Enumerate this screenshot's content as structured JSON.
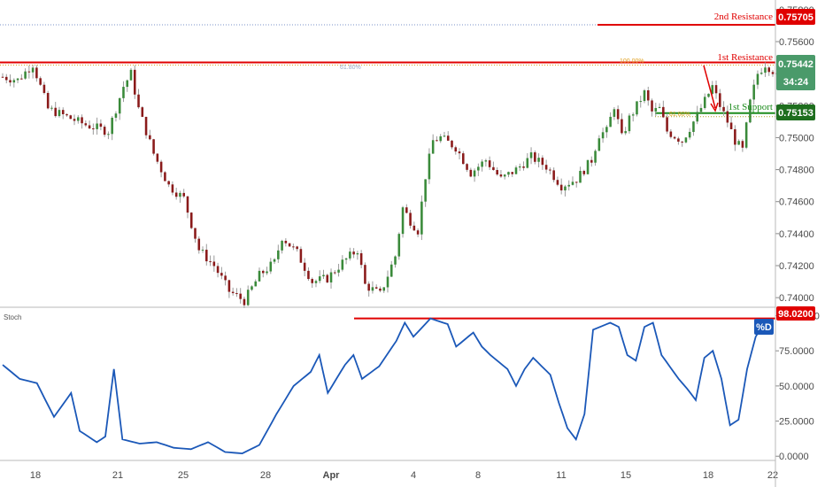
{
  "chart_data": [
    {
      "type": "candlestick",
      "panel": "price",
      "ylim": [
        0.7394,
        0.7586
      ],
      "y_ticks": [
        "0.75800",
        "0.75600",
        "0.75400",
        "0.75200",
        "0.75000",
        "0.74800",
        "0.74600",
        "0.74400",
        "0.74200",
        "0.74000"
      ],
      "x_ticks": [
        "18",
        "21",
        "25",
        "28",
        "Apr",
        "4",
        "8",
        "11",
        "15",
        "18",
        "22"
      ],
      "levels": [
        {
          "name": "2nd Resistance",
          "value": 0.75705,
          "value_text": "0.75705",
          "color": "#e00000"
        },
        {
          "name": "1st Resistance",
          "value": 0.7547,
          "color": "#e00000"
        },
        {
          "name": "1st Support",
          "value": 0.75153,
          "value_text": "0.75153",
          "color": "#1e8c1e"
        }
      ],
      "price_tag": {
        "value": 0.75442,
        "value_text": "0.75442",
        "countdown": "34:24",
        "color": "#4a9a6a"
      },
      "fib_labels": [
        "61.80%",
        "100.00%",
        "61.80%"
      ],
      "series_keypoints": [
        [
          0,
          0.7538
        ],
        [
          4,
          0.7536
        ],
        [
          8,
          0.7546
        ],
        [
          12,
          0.7518
        ],
        [
          16,
          0.7514
        ],
        [
          22,
          0.7508
        ],
        [
          28,
          0.7504
        ],
        [
          32,
          0.7532
        ],
        [
          34,
          0.754
        ],
        [
          36,
          0.7518
        ],
        [
          40,
          0.749
        ],
        [
          44,
          0.747
        ],
        [
          48,
          0.7462
        ],
        [
          52,
          0.743
        ],
        [
          56,
          0.742
        ],
        [
          60,
          0.7404
        ],
        [
          64,
          0.7398
        ],
        [
          68,
          0.7414
        ],
        [
          72,
          0.7422
        ],
        [
          74,
          0.7438
        ],
        [
          78,
          0.7428
        ],
        [
          82,
          0.741
        ],
        [
          86,
          0.7412
        ],
        [
          90,
          0.7422
        ],
        [
          94,
          0.743
        ],
        [
          96,
          0.7408
        ],
        [
          100,
          0.7402
        ],
        [
          104,
          0.7426
        ],
        [
          106,
          0.7456
        ],
        [
          108,
          0.7448
        ],
        [
          110,
          0.7442
        ],
        [
          112,
          0.7476
        ],
        [
          114,
          0.7498
        ],
        [
          116,
          0.75
        ],
        [
          120,
          0.7494
        ],
        [
          124,
          0.7478
        ],
        [
          128,
          0.7486
        ],
        [
          132,
          0.7474
        ],
        [
          136,
          0.748
        ],
        [
          140,
          0.7488
        ],
        [
          144,
          0.7482
        ],
        [
          148,
          0.747
        ],
        [
          152,
          0.7474
        ],
        [
          156,
          0.7486
        ],
        [
          158,
          0.7502
        ],
        [
          160,
          0.7504
        ],
        [
          162,
          0.752
        ],
        [
          164,
          0.75
        ],
        [
          166,
          0.7512
        ],
        [
          170,
          0.7528
        ],
        [
          172,
          0.7516
        ],
        [
          174,
          0.7518
        ],
        [
          176,
          0.7504
        ],
        [
          180,
          0.7498
        ],
        [
          184,
          0.7514
        ],
        [
          188,
          0.7532
        ],
        [
          190,
          0.752
        ],
        [
          192,
          0.751
        ],
        [
          194,
          0.7498
        ],
        [
          196,
          0.7492
        ],
        [
          198,
          0.7522
        ],
        [
          200,
          0.754
        ],
        [
          202,
          0.7546
        ],
        [
          204,
          0.7542
        ]
      ]
    },
    {
      "type": "line",
      "panel": "oscillator",
      "title": "Stoch",
      "series": [
        {
          "name": "%D",
          "color": "#1b58b8"
        }
      ],
      "ylim": [
        -3,
        106
      ],
      "y_ticks": [
        "100.0000",
        "75.0000",
        "50.0000",
        "25.0000",
        "0.0000"
      ],
      "level": {
        "value": 98.02,
        "value_text": "98.0200",
        "color": "#e00000"
      },
      "series_keypoints": [
        [
          0,
          65
        ],
        [
          4,
          55
        ],
        [
          8,
          52
        ],
        [
          12,
          28
        ],
        [
          16,
          45
        ],
        [
          18,
          18
        ],
        [
          22,
          10
        ],
        [
          24,
          14
        ],
        [
          26,
          62
        ],
        [
          28,
          12
        ],
        [
          32,
          9
        ],
        [
          36,
          10
        ],
        [
          40,
          6
        ],
        [
          44,
          5
        ],
        [
          48,
          10
        ],
        [
          52,
          3
        ],
        [
          56,
          2
        ],
        [
          60,
          8
        ],
        [
          64,
          30
        ],
        [
          68,
          50
        ],
        [
          72,
          60
        ],
        [
          74,
          72
        ],
        [
          76,
          45
        ],
        [
          80,
          65
        ],
        [
          82,
          72
        ],
        [
          84,
          55
        ],
        [
          88,
          64
        ],
        [
          92,
          82
        ],
        [
          94,
          95
        ],
        [
          96,
          85
        ],
        [
          100,
          98
        ],
        [
          104,
          94
        ],
        [
          106,
          78
        ],
        [
          110,
          88
        ],
        [
          112,
          78
        ],
        [
          114,
          72
        ],
        [
          118,
          62
        ],
        [
          120,
          50
        ],
        [
          122,
          62
        ],
        [
          124,
          70
        ],
        [
          128,
          58
        ],
        [
          130,
          38
        ],
        [
          132,
          20
        ],
        [
          134,
          12
        ],
        [
          136,
          30
        ],
        [
          138,
          90
        ],
        [
          142,
          95
        ],
        [
          144,
          92
        ],
        [
          146,
          72
        ],
        [
          148,
          68
        ],
        [
          150,
          92
        ],
        [
          152,
          95
        ],
        [
          154,
          72
        ],
        [
          158,
          55
        ],
        [
          160,
          48
        ],
        [
          162,
          40
        ],
        [
          164,
          70
        ],
        [
          166,
          75
        ],
        [
          168,
          55
        ],
        [
          170,
          22
        ],
        [
          172,
          26
        ],
        [
          174,
          62
        ],
        [
          176,
          85
        ],
        [
          178,
          95
        ],
        [
          180,
          92
        ]
      ]
    }
  ]
}
